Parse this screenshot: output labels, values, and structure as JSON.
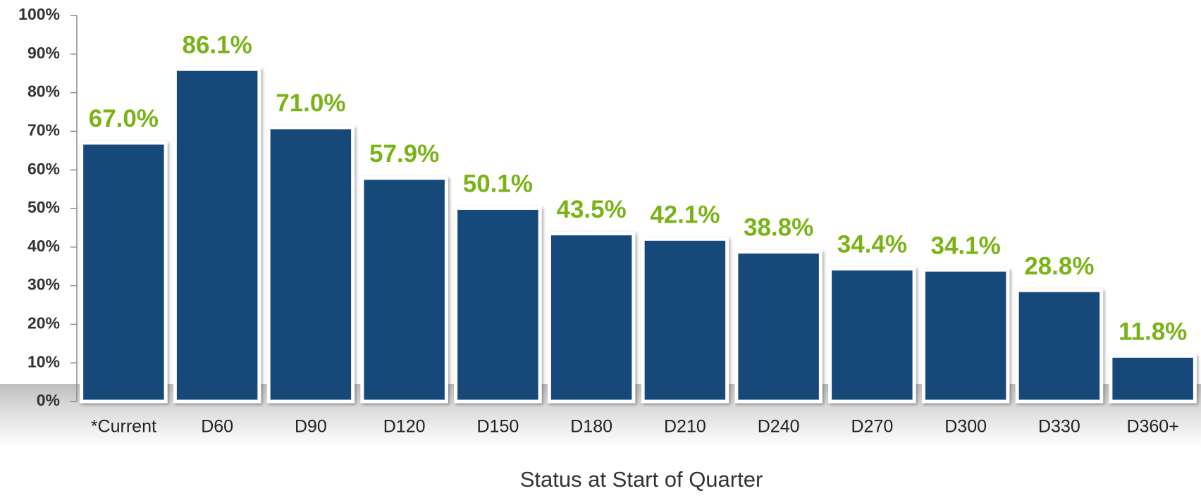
{
  "chart_data": {
    "type": "bar",
    "x_label": "Status at Start of Quarter",
    "categories": [
      "*Current",
      "D60",
      "D90",
      "D120",
      "D150",
      "D180",
      "D210",
      "D240",
      "D270",
      "D300",
      "D330",
      "D360+"
    ],
    "values": [
      67.0,
      86.1,
      71.0,
      57.9,
      50.1,
      43.5,
      42.1,
      38.8,
      34.4,
      34.1,
      28.8,
      11.8
    ],
    "value_labels": [
      "67.0%",
      "86.1%",
      "71.0%",
      "57.9%",
      "50.1%",
      "43.5%",
      "42.1%",
      "38.8%",
      "34.4%",
      "34.1%",
      "28.8%",
      "11.8%"
    ],
    "color": "#17497a",
    "label_color": "#7ab317",
    "ylim": [
      0,
      100
    ],
    "yticks": [
      {
        "value": 0,
        "label": "0%"
      },
      {
        "value": 10,
        "label": "10%"
      },
      {
        "value": 20,
        "label": "20%"
      },
      {
        "value": 30,
        "label": "30%"
      },
      {
        "value": 40,
        "label": "40%"
      },
      {
        "value": 50,
        "label": "50%"
      },
      {
        "value": 60,
        "label": "60%"
      },
      {
        "value": 70,
        "label": "70%"
      },
      {
        "value": 80,
        "label": "80%"
      },
      {
        "value": 90,
        "label": "90%"
      },
      {
        "value": 100,
        "label": "100%"
      }
    ],
    "grid": false
  }
}
